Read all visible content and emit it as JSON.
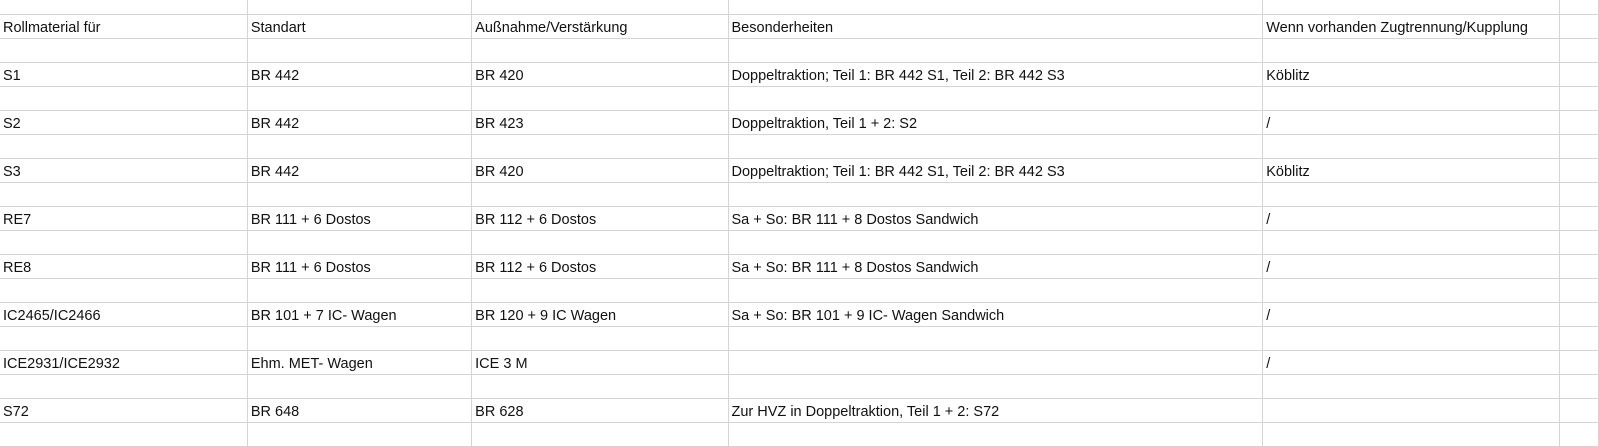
{
  "sheet": {
    "headers": [
      "Rollmaterial für",
      "Standart",
      "Außnahme/Verstärkung",
      "Besonderheiten",
      "Wenn vorhanden Zugtrennung/Kupplung"
    ],
    "rows": [
      [
        "S1",
        "BR 442",
        "BR 420",
        "Doppeltraktion; Teil 1: BR 442 S1, Teil 2: BR 442 S3",
        "Köblitz"
      ],
      [
        "S2",
        "BR 442",
        "BR 423",
        "Doppeltraktion, Teil 1 + 2: S2",
        "/"
      ],
      [
        "S3",
        "BR 442",
        "BR 420",
        "Doppeltraktion; Teil 1: BR 442 S1, Teil 2: BR 442 S3",
        "Köblitz"
      ],
      [
        "RE7",
        "BR 111 + 6 Dostos",
        "BR 112 + 6 Dostos",
        "Sa + So: BR 111 + 8 Dostos Sandwich",
        "/"
      ],
      [
        "RE8",
        "BR 111 + 6 Dostos",
        "BR 112 + 6 Dostos",
        "Sa + So: BR 111 + 8 Dostos Sandwich",
        "/"
      ],
      [
        "IC2465/IC2466",
        "BR 101 + 7 IC- Wagen",
        "BR 120 + 9 IC Wagen",
        "Sa + So: BR 101 + 9 IC- Wagen Sandwich",
        "/"
      ],
      [
        "ICE2931/ICE2932",
        "Ehm. MET- Wagen",
        "ICE 3 M",
        "",
        "/"
      ],
      [
        "S72",
        "BR 648",
        "BR 628",
        "Zur HVZ in Doppeltraktion, Teil 1 + 2: S72",
        ""
      ]
    ]
  }
}
